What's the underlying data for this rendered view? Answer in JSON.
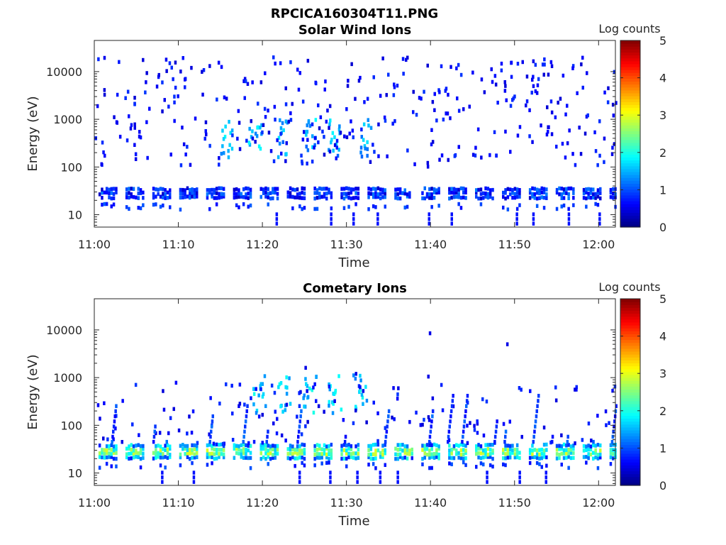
{
  "figure": {
    "title": "RPCICA160304T11.PNG"
  },
  "chart_data": [
    {
      "type": "heatmap",
      "title": "Solar Wind Ions",
      "xlabel": "Time",
      "ylabel": "Energy (eV)",
      "x_ticks": [
        "11:00",
        "11:10",
        "11:20",
        "11:30",
        "11:40",
        "11:50",
        "12:00"
      ],
      "x_range_minutes": [
        0,
        62
      ],
      "y_scale": "log",
      "y_ticks": [
        "10",
        "100",
        "1000",
        "10000"
      ],
      "y_range": [
        5.5,
        45000
      ],
      "colorbar": {
        "label": "Log counts",
        "ticks": [
          "0",
          "1",
          "2",
          "3",
          "4",
          "5"
        ],
        "range": [
          0,
          5
        ],
        "colormap": "jet"
      },
      "features": {
        "low_band_energy": 28,
        "low_band_level": 0.8,
        "sweep_period_minutes": 3.2,
        "burst_centers_minutes": [
          15.5,
          19,
          22.5,
          25.5,
          28.5,
          32
        ],
        "burst_energy": 400,
        "burst_level": 1.5,
        "background": "sparse single-count pixels 100-20000 eV"
      }
    },
    {
      "type": "heatmap",
      "title": "Cometary Ions",
      "xlabel": "Time",
      "ylabel": "Energy (eV)",
      "x_ticks": [
        "11:00",
        "11:10",
        "11:20",
        "11:30",
        "11:40",
        "11:50",
        "12:00"
      ],
      "x_range_minutes": [
        0,
        62
      ],
      "y_scale": "log",
      "y_ticks": [
        "10",
        "100",
        "1000",
        "10000"
      ],
      "y_range": [
        5.5,
        45000
      ],
      "colorbar": {
        "label": "Log counts",
        "ticks": [
          "0",
          "1",
          "2",
          "3",
          "4",
          "5"
        ],
        "range": [
          0,
          5
        ],
        "colormap": "jet"
      },
      "features": {
        "low_band_energy": 28,
        "low_band_level": 2.3,
        "sweep_period_minutes": 3.2,
        "burst_centers_minutes": [
          19.5,
          22.5,
          25.5,
          28.5,
          31.5
        ],
        "burst_energy": 450,
        "burst_level": 1.6,
        "background": "sparse streaks 40-800 eV"
      }
    }
  ]
}
